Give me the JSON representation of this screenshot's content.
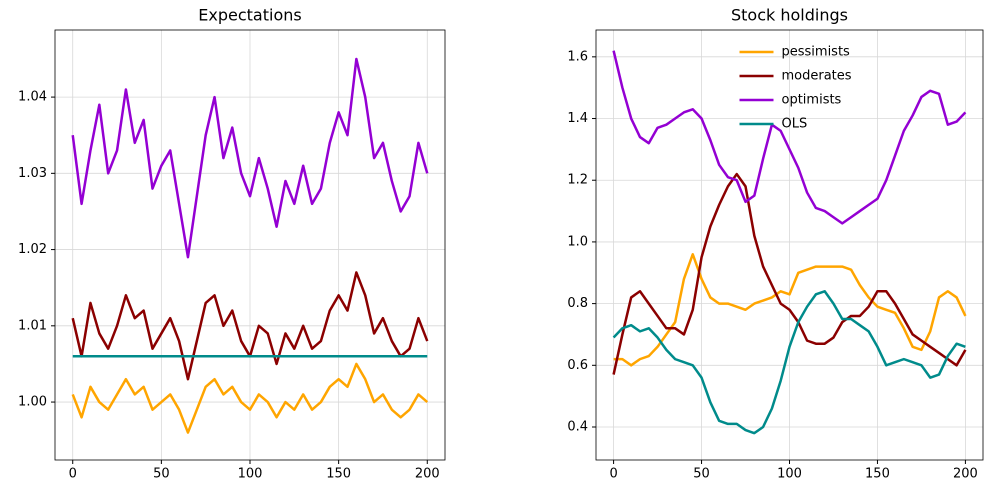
{
  "chart_data": [
    {
      "type": "line",
      "title": "Expectations",
      "x": [
        0,
        5,
        10,
        15,
        20,
        25,
        30,
        35,
        40,
        45,
        50,
        55,
        60,
        65,
        70,
        75,
        80,
        85,
        90,
        95,
        100,
        105,
        110,
        115,
        120,
        125,
        130,
        135,
        140,
        145,
        150,
        155,
        160,
        165,
        170,
        175,
        180,
        185,
        190,
        195,
        200
      ],
      "series": [
        {
          "name": "pessimists",
          "color": "#ffa500",
          "values": [
            1.001,
            0.998,
            1.002,
            1.0,
            0.999,
            1.001,
            1.003,
            1.001,
            1.002,
            0.999,
            1.0,
            1.001,
            0.999,
            0.996,
            0.999,
            1.002,
            1.003,
            1.001,
            1.002,
            1.0,
            0.999,
            1.001,
            1.0,
            0.998,
            1.0,
            0.999,
            1.001,
            0.999,
            1.0,
            1.002,
            1.003,
            1.002,
            1.005,
            1.003,
            1.0,
            1.001,
            0.999,
            0.998,
            0.999,
            1.001,
            1.0
          ]
        },
        {
          "name": "moderates",
          "color": "#8b0000",
          "values": [
            1.011,
            1.006,
            1.013,
            1.009,
            1.007,
            1.01,
            1.014,
            1.011,
            1.012,
            1.007,
            1.009,
            1.011,
            1.008,
            1.003,
            1.008,
            1.013,
            1.014,
            1.01,
            1.012,
            1.008,
            1.006,
            1.01,
            1.009,
            1.005,
            1.009,
            1.007,
            1.01,
            1.007,
            1.008,
            1.012,
            1.014,
            1.012,
            1.017,
            1.014,
            1.009,
            1.011,
            1.008,
            1.006,
            1.007,
            1.011,
            1.008
          ]
        },
        {
          "name": "optimists",
          "color": "#9400d3",
          "values": [
            1.035,
            1.026,
            1.033,
            1.039,
            1.03,
            1.033,
            1.041,
            1.034,
            1.037,
            1.028,
            1.031,
            1.033,
            1.026,
            1.019,
            1.027,
            1.035,
            1.04,
            1.032,
            1.036,
            1.03,
            1.027,
            1.032,
            1.028,
            1.023,
            1.029,
            1.026,
            1.031,
            1.026,
            1.028,
            1.034,
            1.038,
            1.035,
            1.045,
            1.04,
            1.032,
            1.034,
            1.029,
            1.025,
            1.027,
            1.034,
            1.03
          ]
        },
        {
          "name": "OLS",
          "color": "#008b8b",
          "values": [
            1.006,
            1.006,
            1.006,
            1.006,
            1.006,
            1.006,
            1.006,
            1.006,
            1.006,
            1.006,
            1.006,
            1.006,
            1.006,
            1.006,
            1.006,
            1.006,
            1.006,
            1.006,
            1.006,
            1.006,
            1.006,
            1.006,
            1.006,
            1.006,
            1.006,
            1.006,
            1.006,
            1.006,
            1.006,
            1.006,
            1.006,
            1.006,
            1.006,
            1.006,
            1.006,
            1.006,
            1.006,
            1.006,
            1.006,
            1.006,
            1.006
          ]
        }
      ],
      "xlim": [
        -10,
        210
      ],
      "xticks": [
        0,
        50,
        100,
        150,
        200
      ],
      "ylim": [
        0.9924,
        1.0488
      ],
      "yticks": [
        {
          "value": 1,
          "label": "1.00"
        },
        1.01,
        1.02,
        1.03,
        1.04
      ],
      "grid": true
    },
    {
      "type": "line",
      "title": "Stock holdings",
      "x": [
        0,
        5,
        10,
        15,
        20,
        25,
        30,
        35,
        40,
        45,
        50,
        55,
        60,
        65,
        70,
        75,
        80,
        85,
        90,
        95,
        100,
        105,
        110,
        115,
        120,
        125,
        130,
        135,
        140,
        145,
        150,
        155,
        160,
        165,
        170,
        175,
        180,
        185,
        190,
        195,
        200
      ],
      "series": [
        {
          "name": "pessimists",
          "color": "#ffa500",
          "values": [
            0.62,
            0.62,
            0.6,
            0.62,
            0.63,
            0.66,
            0.7,
            0.74,
            0.88,
            0.96,
            0.88,
            0.82,
            0.8,
            0.8,
            0.79,
            0.78,
            0.8,
            0.81,
            0.82,
            0.84,
            0.83,
            0.9,
            0.91,
            0.92,
            0.92,
            0.92,
            0.92,
            0.91,
            0.86,
            0.82,
            0.79,
            0.78,
            0.77,
            0.72,
            0.66,
            0.65,
            0.71,
            0.82,
            0.84,
            0.82,
            0.76
          ]
        },
        {
          "name": "moderates",
          "color": "#8b0000",
          "values": [
            0.57,
            0.7,
            0.82,
            0.84,
            0.8,
            0.76,
            0.72,
            0.72,
            0.7,
            0.78,
            0.95,
            1.05,
            1.12,
            1.18,
            1.22,
            1.18,
            1.02,
            0.92,
            0.86,
            0.8,
            0.78,
            0.74,
            0.68,
            0.67,
            0.67,
            0.69,
            0.74,
            0.76,
            0.76,
            0.79,
            0.84,
            0.84,
            0.8,
            0.75,
            0.7,
            0.68,
            0.66,
            0.64,
            0.62,
            0.6,
            0.65
          ]
        },
        {
          "name": "optimists",
          "color": "#9400d3",
          "values": [
            1.62,
            1.5,
            1.4,
            1.34,
            1.32,
            1.37,
            1.38,
            1.4,
            1.42,
            1.43,
            1.4,
            1.33,
            1.25,
            1.21,
            1.2,
            1.13,
            1.15,
            1.27,
            1.38,
            1.36,
            1.3,
            1.24,
            1.16,
            1.11,
            1.1,
            1.08,
            1.06,
            1.08,
            1.1,
            1.12,
            1.14,
            1.2,
            1.28,
            1.36,
            1.41,
            1.47,
            1.49,
            1.48,
            1.38,
            1.39,
            1.42
          ]
        },
        {
          "name": "OLS",
          "color": "#008b8b",
          "values": [
            0.69,
            0.72,
            0.73,
            0.71,
            0.72,
            0.69,
            0.65,
            0.62,
            0.61,
            0.6,
            0.56,
            0.48,
            0.42,
            0.41,
            0.41,
            0.39,
            0.38,
            0.4,
            0.46,
            0.55,
            0.66,
            0.74,
            0.79,
            0.83,
            0.84,
            0.8,
            0.75,
            0.75,
            0.73,
            0.71,
            0.66,
            0.6,
            0.61,
            0.62,
            0.61,
            0.6,
            0.56,
            0.57,
            0.63,
            0.67,
            0.66
          ]
        }
      ],
      "xlim": [
        -10,
        210
      ],
      "xticks": [
        0,
        50,
        100,
        150,
        200
      ],
      "ylim": [
        0.293,
        1.687
      ],
      "yticks": [
        0.4,
        0.6,
        0.8,
        {
          "value": 1,
          "label": "1.0"
        },
        1.2,
        1.4,
        1.6
      ],
      "grid": true,
      "legend": "upper center"
    }
  ]
}
